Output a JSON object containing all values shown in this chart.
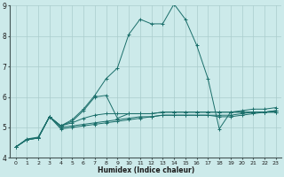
{
  "xlabel": "Humidex (Indice chaleur)",
  "background_color": "#cceaea",
  "grid_color": "#aacccc",
  "line_color": "#1a6e6a",
  "xlim": [
    -0.5,
    23.5
  ],
  "ylim": [
    4,
    9
  ],
  "xticks": [
    0,
    1,
    2,
    3,
    4,
    5,
    6,
    7,
    8,
    9,
    10,
    11,
    12,
    13,
    14,
    15,
    16,
    17,
    18,
    19,
    20,
    21,
    22,
    23
  ],
  "yticks": [
    4,
    5,
    6,
    7,
    8,
    9
  ],
  "curves": [
    [
      4.35,
      4.6,
      4.65,
      5.35,
      5.05,
      5.2,
      5.55,
      6.0,
      6.05,
      5.3,
      5.45,
      5.45,
      5.45,
      5.5,
      5.5,
      5.5,
      5.5,
      5.5,
      5.5,
      5.5,
      5.5,
      5.5,
      5.5,
      5.5
    ],
    [
      4.35,
      4.6,
      4.65,
      5.35,
      5.05,
      5.15,
      5.3,
      5.4,
      5.45,
      5.45,
      5.45,
      5.45,
      5.45,
      5.5,
      5.5,
      5.5,
      5.5,
      5.5,
      5.5,
      5.5,
      5.5,
      5.5,
      5.5,
      5.5
    ],
    [
      4.35,
      4.6,
      4.65,
      5.35,
      5.0,
      5.05,
      5.1,
      5.15,
      5.2,
      5.25,
      5.3,
      5.35,
      5.35,
      5.4,
      5.4,
      5.4,
      5.4,
      5.4,
      5.4,
      5.4,
      5.45,
      5.5,
      5.5,
      5.55
    ],
    [
      4.35,
      4.6,
      4.65,
      5.35,
      4.95,
      5.0,
      5.05,
      5.1,
      5.15,
      5.2,
      5.25,
      5.3,
      5.35,
      5.4,
      5.4,
      5.4,
      5.4,
      5.4,
      5.35,
      5.35,
      5.4,
      5.45,
      5.5,
      5.55
    ],
    [
      4.35,
      4.62,
      4.68,
      5.35,
      5.05,
      5.25,
      5.6,
      6.05,
      6.6,
      6.95,
      8.05,
      8.55,
      8.4,
      8.4,
      9.05,
      8.55,
      7.7,
      6.6,
      4.95,
      5.5,
      5.55,
      5.6,
      5.6,
      5.65
    ]
  ]
}
